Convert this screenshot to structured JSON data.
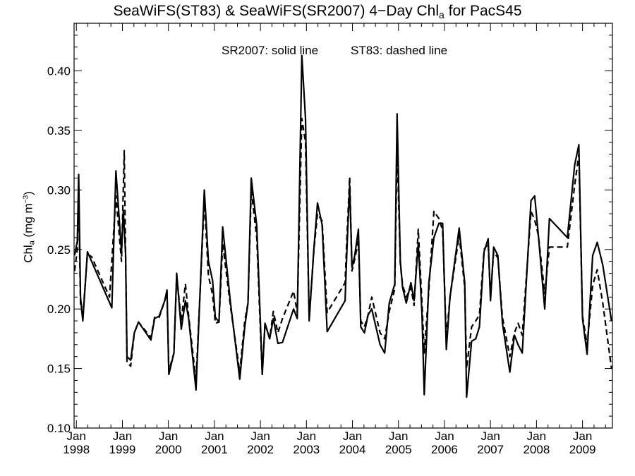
{
  "chart_data": {
    "type": "line",
    "title": {
      "main": "SeaWiFS(ST83) & SeaWiFS(SR2007) 4−Day Chl",
      "subscript": "a",
      "suffix": " for PacS45"
    },
    "ylabel": {
      "main": "Chl",
      "subscript": "a",
      "unit_open": " (mg m",
      "unit_sup": "−3",
      "unit_close": ")"
    },
    "annotations": [
      "SR2007: solid line",
      "ST83: dashed line"
    ],
    "ylim": [
      0.1,
      0.44
    ],
    "y_ticks": [
      "0.10",
      "0.15",
      "0.20",
      "0.25",
      "0.30",
      "0.35",
      "0.40"
    ],
    "xlim": [
      1997.95,
      2009.65
    ],
    "x_ticks": [
      {
        "month": "Jan",
        "year": "1998"
      },
      {
        "month": "Jan",
        "year": "1999"
      },
      {
        "month": "Jan",
        "year": "2000"
      },
      {
        "month": "Jan",
        "year": "2001"
      },
      {
        "month": "Jan",
        "year": "2002"
      },
      {
        "month": "Jan",
        "year": "2003"
      },
      {
        "month": "Jan",
        "year": "2004"
      },
      {
        "month": "Jan",
        "year": "2005"
      },
      {
        "month": "Jan",
        "year": "2006"
      },
      {
        "month": "Jan",
        "year": "2007"
      },
      {
        "month": "Jan",
        "year": "2008"
      },
      {
        "month": "Jan",
        "year": "2009"
      }
    ],
    "series": [
      {
        "name": "SR2007",
        "style": "solid",
        "color": "#000000",
        "points": [
          [
            1997.96,
            0.245
          ],
          [
            1998.02,
            0.257
          ],
          [
            1998.05,
            0.313
          ],
          [
            1998.09,
            0.21
          ],
          [
            1998.14,
            0.19
          ],
          [
            1998.24,
            0.248
          ],
          [
            1998.33,
            0.24
          ],
          [
            1998.77,
            0.201
          ],
          [
            1998.86,
            0.316
          ],
          [
            1998.98,
            0.248
          ],
          [
            1999.02,
            0.283
          ],
          [
            1999.07,
            0.246
          ],
          [
            1999.1,
            0.16
          ],
          [
            1999.18,
            0.157
          ],
          [
            1999.26,
            0.18
          ],
          [
            1999.35,
            0.189
          ],
          [
            1999.62,
            0.174
          ],
          [
            1999.7,
            0.192
          ],
          [
            1999.8,
            0.194
          ],
          [
            1999.92,
            0.207
          ],
          [
            1999.97,
            0.216
          ],
          [
            2000.01,
            0.145
          ],
          [
            2000.12,
            0.163
          ],
          [
            2000.18,
            0.23
          ],
          [
            2000.28,
            0.183
          ],
          [
            2000.37,
            0.207
          ],
          [
            2000.44,
            0.192
          ],
          [
            2000.6,
            0.132
          ],
          [
            2000.78,
            0.3
          ],
          [
            2000.87,
            0.24
          ],
          [
            2000.96,
            0.224
          ],
          [
            2001.02,
            0.193
          ],
          [
            2001.1,
            0.189
          ],
          [
            2001.18,
            0.269
          ],
          [
            2001.35,
            0.205
          ],
          [
            2001.55,
            0.141
          ],
          [
            2001.66,
            0.185
          ],
          [
            2001.73,
            0.205
          ],
          [
            2001.8,
            0.31
          ],
          [
            2001.92,
            0.27
          ],
          [
            2002.0,
            0.188
          ],
          [
            2002.04,
            0.145
          ],
          [
            2002.1,
            0.188
          ],
          [
            2002.2,
            0.175
          ],
          [
            2002.28,
            0.192
          ],
          [
            2002.38,
            0.171
          ],
          [
            2002.48,
            0.172
          ],
          [
            2002.72,
            0.2
          ],
          [
            2002.8,
            0.192
          ],
          [
            2002.9,
            0.413
          ],
          [
            2002.98,
            0.36
          ],
          [
            2003.06,
            0.19
          ],
          [
            2003.16,
            0.25
          ],
          [
            2003.24,
            0.289
          ],
          [
            2003.34,
            0.271
          ],
          [
            2003.45,
            0.181
          ],
          [
            2003.84,
            0.207
          ],
          [
            2003.88,
            0.25
          ],
          [
            2003.94,
            0.304
          ],
          [
            2003.99,
            0.235
          ],
          [
            2004.05,
            0.245
          ],
          [
            2004.13,
            0.267
          ],
          [
            2004.18,
            0.185
          ],
          [
            2004.26,
            0.18
          ],
          [
            2004.34,
            0.195
          ],
          [
            2004.42,
            0.2
          ],
          [
            2004.6,
            0.17
          ],
          [
            2004.7,
            0.163
          ],
          [
            2004.8,
            0.205
          ],
          [
            2004.92,
            0.221
          ],
          [
            2004.97,
            0.364
          ],
          [
            2005.04,
            0.24
          ],
          [
            2005.09,
            0.218
          ],
          [
            2005.17,
            0.205
          ],
          [
            2005.27,
            0.222
          ],
          [
            2005.34,
            0.207
          ],
          [
            2005.43,
            0.255
          ],
          [
            2005.51,
            0.197
          ],
          [
            2005.56,
            0.128
          ],
          [
            2005.66,
            0.222
          ],
          [
            2005.77,
            0.26
          ],
          [
            2005.88,
            0.272
          ],
          [
            2005.96,
            0.272
          ],
          [
            2006.04,
            0.166
          ],
          [
            2006.12,
            0.21
          ],
          [
            2006.32,
            0.268
          ],
          [
            2006.44,
            0.222
          ],
          [
            2006.48,
            0.126
          ],
          [
            2006.59,
            0.173
          ],
          [
            2006.68,
            0.175
          ],
          [
            2006.76,
            0.185
          ],
          [
            2006.86,
            0.248
          ],
          [
            2006.95,
            0.259
          ],
          [
            2007.0,
            0.207
          ],
          [
            2007.07,
            0.252
          ],
          [
            2007.16,
            0.245
          ],
          [
            2007.26,
            0.188
          ],
          [
            2007.42,
            0.147
          ],
          [
            2007.52,
            0.178
          ],
          [
            2007.6,
            0.17
          ],
          [
            2007.69,
            0.163
          ],
          [
            2007.88,
            0.291
          ],
          [
            2007.96,
            0.295
          ],
          [
            2008.04,
            0.262
          ],
          [
            2008.18,
            0.2
          ],
          [
            2008.28,
            0.276
          ],
          [
            2008.67,
            0.26
          ],
          [
            2008.83,
            0.321
          ],
          [
            2008.92,
            0.338
          ],
          [
            2009.0,
            0.192
          ],
          [
            2009.1,
            0.162
          ],
          [
            2009.22,
            0.245
          ],
          [
            2009.32,
            0.256
          ],
          [
            2009.44,
            0.237
          ],
          [
            2009.63,
            0.19
          ]
        ]
      },
      {
        "name": "ST83",
        "style": "dashed",
        "color": "#000000",
        "points": [
          [
            1997.96,
            0.232
          ],
          [
            1998.02,
            0.25
          ],
          [
            1998.05,
            0.297
          ],
          [
            1998.09,
            0.205
          ],
          [
            1998.14,
            0.193
          ],
          [
            1998.24,
            0.246
          ],
          [
            1998.33,
            0.244
          ],
          [
            1998.72,
            0.21
          ],
          [
            1998.86,
            0.295
          ],
          [
            1998.98,
            0.24
          ],
          [
            1999.04,
            0.333
          ],
          [
            1999.1,
            0.155
          ],
          [
            1999.18,
            0.152
          ],
          [
            1999.26,
            0.18
          ],
          [
            1999.35,
            0.189
          ],
          [
            1999.62,
            0.176
          ],
          [
            1999.7,
            0.193
          ],
          [
            1999.8,
            0.193
          ],
          [
            1999.92,
            0.207
          ],
          [
            1999.97,
            0.214
          ],
          [
            2000.01,
            0.148
          ],
          [
            2000.12,
            0.163
          ],
          [
            2000.18,
            0.228
          ],
          [
            2000.28,
            0.19
          ],
          [
            2000.37,
            0.221
          ],
          [
            2000.44,
            0.194
          ],
          [
            2000.6,
            0.14
          ],
          [
            2000.78,
            0.292
          ],
          [
            2000.87,
            0.228
          ],
          [
            2000.96,
            0.212
          ],
          [
            2001.02,
            0.188
          ],
          [
            2001.1,
            0.189
          ],
          [
            2001.18,
            0.255
          ],
          [
            2001.35,
            0.202
          ],
          [
            2001.55,
            0.147
          ],
          [
            2001.66,
            0.19
          ],
          [
            2001.73,
            0.205
          ],
          [
            2001.8,
            0.3
          ],
          [
            2001.92,
            0.26
          ],
          [
            2002.0,
            0.182
          ],
          [
            2002.04,
            0.145
          ],
          [
            2002.1,
            0.188
          ],
          [
            2002.2,
            0.175
          ],
          [
            2002.28,
            0.198
          ],
          [
            2002.38,
            0.18
          ],
          [
            2002.48,
            0.192
          ],
          [
            2002.72,
            0.215
          ],
          [
            2002.8,
            0.197
          ],
          [
            2002.9,
            0.36
          ],
          [
            2002.98,
            0.34
          ],
          [
            2003.06,
            0.192
          ],
          [
            2003.16,
            0.249
          ],
          [
            2003.24,
            0.28
          ],
          [
            2003.34,
            0.274
          ],
          [
            2003.45,
            0.197
          ],
          [
            2003.84,
            0.222
          ],
          [
            2003.88,
            0.26
          ],
          [
            2003.94,
            0.311
          ],
          [
            2003.99,
            0.232
          ],
          [
            2004.05,
            0.242
          ],
          [
            2004.13,
            0.257
          ],
          [
            2004.18,
            0.19
          ],
          [
            2004.26,
            0.185
          ],
          [
            2004.34,
            0.195
          ],
          [
            2004.42,
            0.21
          ],
          [
            2004.6,
            0.18
          ],
          [
            2004.7,
            0.175
          ],
          [
            2004.8,
            0.198
          ],
          [
            2004.92,
            0.217
          ],
          [
            2004.97,
            0.338
          ],
          [
            2005.04,
            0.238
          ],
          [
            2005.09,
            0.22
          ],
          [
            2005.17,
            0.21
          ],
          [
            2005.27,
            0.218
          ],
          [
            2005.34,
            0.203
          ],
          [
            2005.43,
            0.267
          ],
          [
            2005.51,
            0.206
          ],
          [
            2005.56,
            0.163
          ],
          [
            2005.66,
            0.216
          ],
          [
            2005.77,
            0.282
          ],
          [
            2005.88,
            0.276
          ],
          [
            2005.96,
            0.266
          ],
          [
            2006.04,
            0.175
          ],
          [
            2006.12,
            0.21
          ],
          [
            2006.32,
            0.262
          ],
          [
            2006.44,
            0.218
          ],
          [
            2006.48,
            0.15
          ],
          [
            2006.59,
            0.185
          ],
          [
            2006.68,
            0.19
          ],
          [
            2006.76,
            0.195
          ],
          [
            2006.86,
            0.25
          ],
          [
            2006.95,
            0.255
          ],
          [
            2007.0,
            0.21
          ],
          [
            2007.07,
            0.248
          ],
          [
            2007.16,
            0.243
          ],
          [
            2007.26,
            0.193
          ],
          [
            2007.42,
            0.16
          ],
          [
            2007.52,
            0.18
          ],
          [
            2007.6,
            0.188
          ],
          [
            2007.69,
            0.178
          ],
          [
            2007.88,
            0.282
          ],
          [
            2007.96,
            0.275
          ],
          [
            2008.04,
            0.262
          ],
          [
            2008.18,
            0.213
          ],
          [
            2008.28,
            0.252
          ],
          [
            2008.67,
            0.252
          ],
          [
            2008.83,
            0.304
          ],
          [
            2008.92,
            0.33
          ],
          [
            2009.0,
            0.194
          ],
          [
            2009.1,
            0.17
          ],
          [
            2009.22,
            0.22
          ],
          [
            2009.32,
            0.233
          ],
          [
            2009.44,
            0.205
          ],
          [
            2009.63,
            0.15
          ]
        ]
      }
    ]
  }
}
